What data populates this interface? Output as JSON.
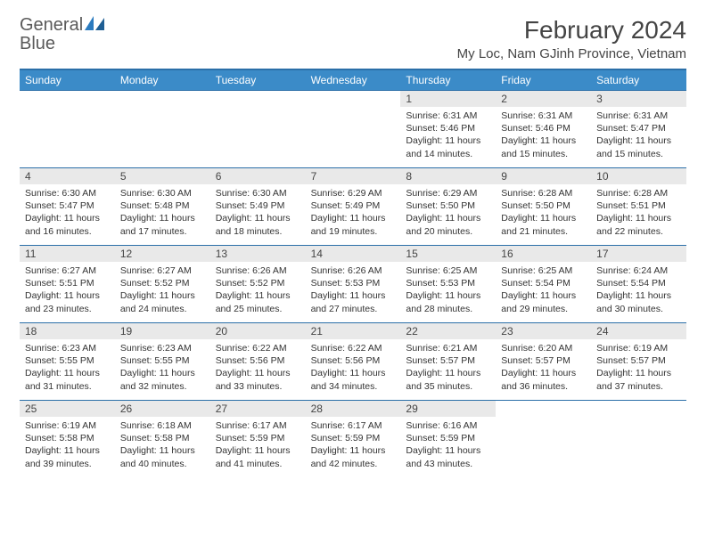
{
  "logo": {
    "text_general": "General",
    "text_blue": "Blue"
  },
  "title": "February 2024",
  "location": "My Loc, Nam GJinh Province, Vietnam",
  "colors": {
    "header_bg": "#3b8bc8",
    "header_border": "#2b6fa8",
    "daynum_bg": "#e9e9e9",
    "text": "#333333",
    "logo_gray": "#5a5a5a",
    "logo_blue": "#2b7bbf"
  },
  "day_names": [
    "Sunday",
    "Monday",
    "Tuesday",
    "Wednesday",
    "Thursday",
    "Friday",
    "Saturday"
  ],
  "weeks": [
    [
      {
        "n": "",
        "sr": "",
        "ss": "",
        "dl": ""
      },
      {
        "n": "",
        "sr": "",
        "ss": "",
        "dl": ""
      },
      {
        "n": "",
        "sr": "",
        "ss": "",
        "dl": ""
      },
      {
        "n": "",
        "sr": "",
        "ss": "",
        "dl": ""
      },
      {
        "n": "1",
        "sr": "Sunrise: 6:31 AM",
        "ss": "Sunset: 5:46 PM",
        "dl": "Daylight: 11 hours and 14 minutes."
      },
      {
        "n": "2",
        "sr": "Sunrise: 6:31 AM",
        "ss": "Sunset: 5:46 PM",
        "dl": "Daylight: 11 hours and 15 minutes."
      },
      {
        "n": "3",
        "sr": "Sunrise: 6:31 AM",
        "ss": "Sunset: 5:47 PM",
        "dl": "Daylight: 11 hours and 15 minutes."
      }
    ],
    [
      {
        "n": "4",
        "sr": "Sunrise: 6:30 AM",
        "ss": "Sunset: 5:47 PM",
        "dl": "Daylight: 11 hours and 16 minutes."
      },
      {
        "n": "5",
        "sr": "Sunrise: 6:30 AM",
        "ss": "Sunset: 5:48 PM",
        "dl": "Daylight: 11 hours and 17 minutes."
      },
      {
        "n": "6",
        "sr": "Sunrise: 6:30 AM",
        "ss": "Sunset: 5:49 PM",
        "dl": "Daylight: 11 hours and 18 minutes."
      },
      {
        "n": "7",
        "sr": "Sunrise: 6:29 AM",
        "ss": "Sunset: 5:49 PM",
        "dl": "Daylight: 11 hours and 19 minutes."
      },
      {
        "n": "8",
        "sr": "Sunrise: 6:29 AM",
        "ss": "Sunset: 5:50 PM",
        "dl": "Daylight: 11 hours and 20 minutes."
      },
      {
        "n": "9",
        "sr": "Sunrise: 6:28 AM",
        "ss": "Sunset: 5:50 PM",
        "dl": "Daylight: 11 hours and 21 minutes."
      },
      {
        "n": "10",
        "sr": "Sunrise: 6:28 AM",
        "ss": "Sunset: 5:51 PM",
        "dl": "Daylight: 11 hours and 22 minutes."
      }
    ],
    [
      {
        "n": "11",
        "sr": "Sunrise: 6:27 AM",
        "ss": "Sunset: 5:51 PM",
        "dl": "Daylight: 11 hours and 23 minutes."
      },
      {
        "n": "12",
        "sr": "Sunrise: 6:27 AM",
        "ss": "Sunset: 5:52 PM",
        "dl": "Daylight: 11 hours and 24 minutes."
      },
      {
        "n": "13",
        "sr": "Sunrise: 6:26 AM",
        "ss": "Sunset: 5:52 PM",
        "dl": "Daylight: 11 hours and 25 minutes."
      },
      {
        "n": "14",
        "sr": "Sunrise: 6:26 AM",
        "ss": "Sunset: 5:53 PM",
        "dl": "Daylight: 11 hours and 27 minutes."
      },
      {
        "n": "15",
        "sr": "Sunrise: 6:25 AM",
        "ss": "Sunset: 5:53 PM",
        "dl": "Daylight: 11 hours and 28 minutes."
      },
      {
        "n": "16",
        "sr": "Sunrise: 6:25 AM",
        "ss": "Sunset: 5:54 PM",
        "dl": "Daylight: 11 hours and 29 minutes."
      },
      {
        "n": "17",
        "sr": "Sunrise: 6:24 AM",
        "ss": "Sunset: 5:54 PM",
        "dl": "Daylight: 11 hours and 30 minutes."
      }
    ],
    [
      {
        "n": "18",
        "sr": "Sunrise: 6:23 AM",
        "ss": "Sunset: 5:55 PM",
        "dl": "Daylight: 11 hours and 31 minutes."
      },
      {
        "n": "19",
        "sr": "Sunrise: 6:23 AM",
        "ss": "Sunset: 5:55 PM",
        "dl": "Daylight: 11 hours and 32 minutes."
      },
      {
        "n": "20",
        "sr": "Sunrise: 6:22 AM",
        "ss": "Sunset: 5:56 PM",
        "dl": "Daylight: 11 hours and 33 minutes."
      },
      {
        "n": "21",
        "sr": "Sunrise: 6:22 AM",
        "ss": "Sunset: 5:56 PM",
        "dl": "Daylight: 11 hours and 34 minutes."
      },
      {
        "n": "22",
        "sr": "Sunrise: 6:21 AM",
        "ss": "Sunset: 5:57 PM",
        "dl": "Daylight: 11 hours and 35 minutes."
      },
      {
        "n": "23",
        "sr": "Sunrise: 6:20 AM",
        "ss": "Sunset: 5:57 PM",
        "dl": "Daylight: 11 hours and 36 minutes."
      },
      {
        "n": "24",
        "sr": "Sunrise: 6:19 AM",
        "ss": "Sunset: 5:57 PM",
        "dl": "Daylight: 11 hours and 37 minutes."
      }
    ],
    [
      {
        "n": "25",
        "sr": "Sunrise: 6:19 AM",
        "ss": "Sunset: 5:58 PM",
        "dl": "Daylight: 11 hours and 39 minutes."
      },
      {
        "n": "26",
        "sr": "Sunrise: 6:18 AM",
        "ss": "Sunset: 5:58 PM",
        "dl": "Daylight: 11 hours and 40 minutes."
      },
      {
        "n": "27",
        "sr": "Sunrise: 6:17 AM",
        "ss": "Sunset: 5:59 PM",
        "dl": "Daylight: 11 hours and 41 minutes."
      },
      {
        "n": "28",
        "sr": "Sunrise: 6:17 AM",
        "ss": "Sunset: 5:59 PM",
        "dl": "Daylight: 11 hours and 42 minutes."
      },
      {
        "n": "29",
        "sr": "Sunrise: 6:16 AM",
        "ss": "Sunset: 5:59 PM",
        "dl": "Daylight: 11 hours and 43 minutes."
      },
      {
        "n": "",
        "sr": "",
        "ss": "",
        "dl": ""
      },
      {
        "n": "",
        "sr": "",
        "ss": "",
        "dl": ""
      }
    ]
  ]
}
